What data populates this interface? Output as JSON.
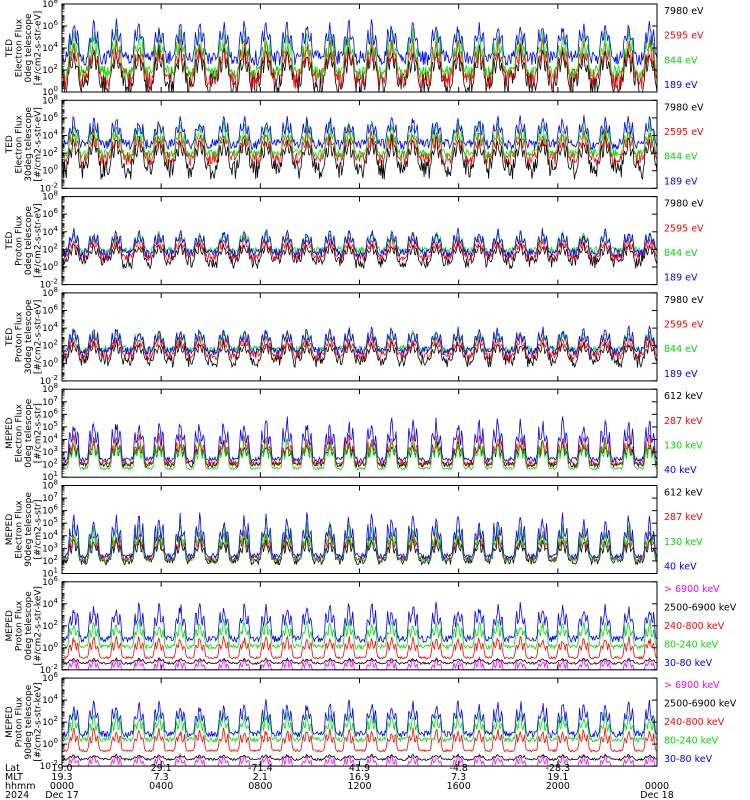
{
  "colors": {
    "black": "#000000",
    "red": "#ff0000",
    "green": "#00dd00",
    "blue": "#0000ff",
    "magenta": "#ff00ff"
  },
  "chart_data": [
    {
      "type": "line",
      "ylabel_lines": [
        "TED",
        "Electron Flux",
        "0deg telescope",
        "[#/cm2-s-str-eV]"
      ],
      "ylim_exp": [
        0,
        8
      ],
      "yticks_exp": [
        0,
        2,
        4,
        6,
        8
      ],
      "series": [
        {
          "name": "7980 eV",
          "color": "#000000",
          "baseline_exp": 0.5,
          "peak_exp": 4.5,
          "noise": 1.5
        },
        {
          "name": "2595 eV",
          "color": "#ff0000",
          "baseline_exp": 1.2,
          "peak_exp": 5.2,
          "noise": 1.0
        },
        {
          "name": "844 eV",
          "color": "#00dd00",
          "baseline_exp": 1.8,
          "peak_exp": 6.0,
          "noise": 0.6
        },
        {
          "name": "189 eV",
          "color": "#0000ff",
          "baseline_exp": 3.1,
          "peak_exp": 6.8,
          "noise": 0.7
        }
      ]
    },
    {
      "type": "line",
      "ylabel_lines": [
        "TED",
        "Electron Flux",
        "30deg telescope",
        "[#/cm2-s-str-eV]"
      ],
      "ylim_exp": [
        -2,
        8
      ],
      "yticks_exp": [
        -2,
        0,
        2,
        4,
        6,
        8
      ],
      "series": [
        {
          "name": "7980 eV",
          "color": "#000000",
          "baseline_exp": 0.2,
          "peak_exp": 4.3,
          "noise": 1.2
        },
        {
          "name": "2595 eV",
          "color": "#ff0000",
          "baseline_exp": 1.4,
          "peak_exp": 5.0,
          "noise": 0.8
        },
        {
          "name": "844 eV",
          "color": "#00dd00",
          "baseline_exp": 1.9,
          "peak_exp": 5.8,
          "noise": 0.5
        },
        {
          "name": "189 eV",
          "color": "#0000ff",
          "baseline_exp": 3.0,
          "peak_exp": 6.5,
          "noise": 0.6
        }
      ]
    },
    {
      "type": "line",
      "ylabel_lines": [
        "TED",
        "Proton Flux",
        "0deg telescope",
        "[#/cm2-s-str-eV]"
      ],
      "ylim_exp": [
        -2,
        8
      ],
      "yticks_exp": [
        -2,
        0,
        2,
        4,
        6,
        8
      ],
      "series": [
        {
          "name": "7980 eV",
          "color": "#000000",
          "baseline_exp": 0.6,
          "peak_exp": 3.0,
          "noise": 0.8
        },
        {
          "name": "2595 eV",
          "color": "#ff0000",
          "baseline_exp": 1.2,
          "peak_exp": 3.6,
          "noise": 0.5
        },
        {
          "name": "844 eV",
          "color": "#00dd00",
          "baseline_exp": 1.9,
          "peak_exp": 4.2,
          "noise": 0.4
        },
        {
          "name": "189 eV",
          "color": "#0000ff",
          "baseline_exp": 1.6,
          "peak_exp": 4.6,
          "noise": 0.5
        }
      ]
    },
    {
      "type": "line",
      "ylabel_lines": [
        "TED",
        "Proton Flux",
        "30deg telescope",
        "[#/cm2-s-str-eV]"
      ],
      "ylim_exp": [
        -2,
        8
      ],
      "yticks_exp": [
        -2,
        0,
        2,
        4,
        6,
        8
      ],
      "series": [
        {
          "name": "7980 eV",
          "color": "#000000",
          "baseline_exp": 0.3,
          "peak_exp": 2.8,
          "noise": 0.8
        },
        {
          "name": "2595 eV",
          "color": "#ff0000",
          "baseline_exp": 0.9,
          "peak_exp": 3.4,
          "noise": 0.5
        },
        {
          "name": "844 eV",
          "color": "#00dd00",
          "baseline_exp": 1.6,
          "peak_exp": 4.0,
          "noise": 0.4
        },
        {
          "name": "189 eV",
          "color": "#0000ff",
          "baseline_exp": 1.4,
          "peak_exp": 4.4,
          "noise": 0.5
        }
      ]
    },
    {
      "type": "line",
      "ylabel_lines": [
        "MEPED",
        "Electron Flux",
        "0deg telescope",
        "[#/cm2-s-str]"
      ],
      "ylim_exp": [
        1,
        8
      ],
      "yticks_exp": [
        1,
        2,
        3,
        4,
        5,
        6,
        7,
        8
      ],
      "series": [
        {
          "name": "612 keV",
          "color": "#000000",
          "baseline_exp": 2.0,
          "peak_exp": 4.0,
          "noise": 0.2
        },
        {
          "name": "287 keV",
          "color": "#ff0000",
          "baseline_exp": 2.1,
          "peak_exp": 4.6,
          "noise": 0.2
        },
        {
          "name": "130 keV",
          "color": "#00dd00",
          "baseline_exp": 1.7,
          "peak_exp": 4.2,
          "noise": 0.1
        },
        {
          "name": "40 keV",
          "color": "#0000ff",
          "baseline_exp": 2.4,
          "peak_exp": 6.0,
          "noise": 0.2
        }
      ]
    },
    {
      "type": "line",
      "ylabel_lines": [
        "MEPED",
        "Electron Flux",
        "90deg telescope",
        "[#/cm2-s-str]"
      ],
      "ylim_exp": [
        1,
        8
      ],
      "yticks_exp": [
        1,
        2,
        3,
        4,
        5,
        6,
        7,
        8
      ],
      "series": [
        {
          "name": "612 keV",
          "color": "#000000",
          "baseline_exp": 2.0,
          "peak_exp": 4.0,
          "noise": 0.3
        },
        {
          "name": "287 keV",
          "color": "#ff0000",
          "baseline_exp": 2.2,
          "peak_exp": 4.6,
          "noise": 0.2
        },
        {
          "name": "130 keV",
          "color": "#00dd00",
          "baseline_exp": 2.1,
          "peak_exp": 5.2,
          "noise": 0.1
        },
        {
          "name": "40 keV",
          "color": "#0000ff",
          "baseline_exp": 2.4,
          "peak_exp": 6.0,
          "noise": 0.2
        }
      ]
    },
    {
      "type": "line",
      "ylabel_lines": [
        "MEPED",
        "Proton Flux",
        "0deg telescope",
        "[#/cm2-s-str-keV]"
      ],
      "ylim_exp": [
        -2,
        6
      ],
      "yticks_exp": [
        -2,
        0,
        2,
        4,
        6
      ],
      "series": [
        {
          "name": "> 6900 keV",
          "color": "#ff00ff",
          "baseline_exp": -2.3,
          "peak_exp": -0.8,
          "noise": 0.2
        },
        {
          "name": "2500-6900 keV",
          "color": "#000000",
          "baseline_exp": -1.4,
          "peak_exp": -0.9,
          "noise": 0.1
        },
        {
          "name": "240-800 keV",
          "color": "#ff0000",
          "baseline_exp": -0.9,
          "peak_exp": 1.2,
          "noise": 0.1
        },
        {
          "name": "80-240 keV",
          "color": "#00dd00",
          "baseline_exp": 0.1,
          "peak_exp": 2.8,
          "noise": 0.2
        },
        {
          "name": "30-80 keV",
          "color": "#0000ff",
          "baseline_exp": 0.8,
          "peak_exp": 4.4,
          "noise": 0.3
        }
      ]
    },
    {
      "type": "line",
      "ylabel_lines": [
        "MEPED",
        "Proton Flux",
        "90deg telescope",
        "[#/cm2-s-str-keV]"
      ],
      "ylim_exp": [
        -2,
        6
      ],
      "yticks_exp": [
        -2,
        0,
        2,
        4,
        6
      ],
      "series": [
        {
          "name": "> 6900 keV",
          "color": "#ff00ff",
          "baseline_exp": -2.3,
          "peak_exp": -0.8,
          "noise": 0.2
        },
        {
          "name": "2500-6900 keV",
          "color": "#000000",
          "baseline_exp": -1.4,
          "peak_exp": -0.9,
          "noise": 0.1
        },
        {
          "name": "240-800 keV",
          "color": "#ff0000",
          "baseline_exp": -0.6,
          "peak_exp": 1.6,
          "noise": 0.1
        },
        {
          "name": "80-240 keV",
          "color": "#00dd00",
          "baseline_exp": 0.4,
          "peak_exp": 3.0,
          "noise": 0.2
        },
        {
          "name": "30-80 keV",
          "color": "#0000ff",
          "baseline_exp": 0.9,
          "peak_exp": 4.2,
          "noise": 0.3
        }
      ]
    }
  ],
  "x_axis": {
    "row_labels": [
      "Lat",
      "MLT",
      "hhmm",
      "2024"
    ],
    "x_range_hours": [
      0,
      24
    ],
    "pass_count": 28,
    "ticks": [
      {
        "hour": 0,
        "lat": "19.0",
        "mlt": "19.3",
        "hhmm": "0000",
        "date": "Dec 17"
      },
      {
        "hour": 4,
        "lat": "29.1",
        "mlt": "7.3",
        "hhmm": "0400",
        "date": ""
      },
      {
        "hour": 8,
        "lat": "-71.4",
        "mlt": "2.1",
        "hhmm": "0800",
        "date": ""
      },
      {
        "hour": 12,
        "lat": "41.9",
        "mlt": "16.9",
        "hhmm": "1200",
        "date": ""
      },
      {
        "hour": 16,
        "lat": "-4.8",
        "mlt": "7.3",
        "hhmm": "1600",
        "date": ""
      },
      {
        "hour": 20,
        "lat": "-28.3",
        "mlt": "19.1",
        "hhmm": "2000",
        "date": ""
      },
      {
        "hour": 24,
        "lat": "",
        "mlt": "",
        "hhmm": "0000",
        "date": "Dec 18"
      }
    ]
  }
}
